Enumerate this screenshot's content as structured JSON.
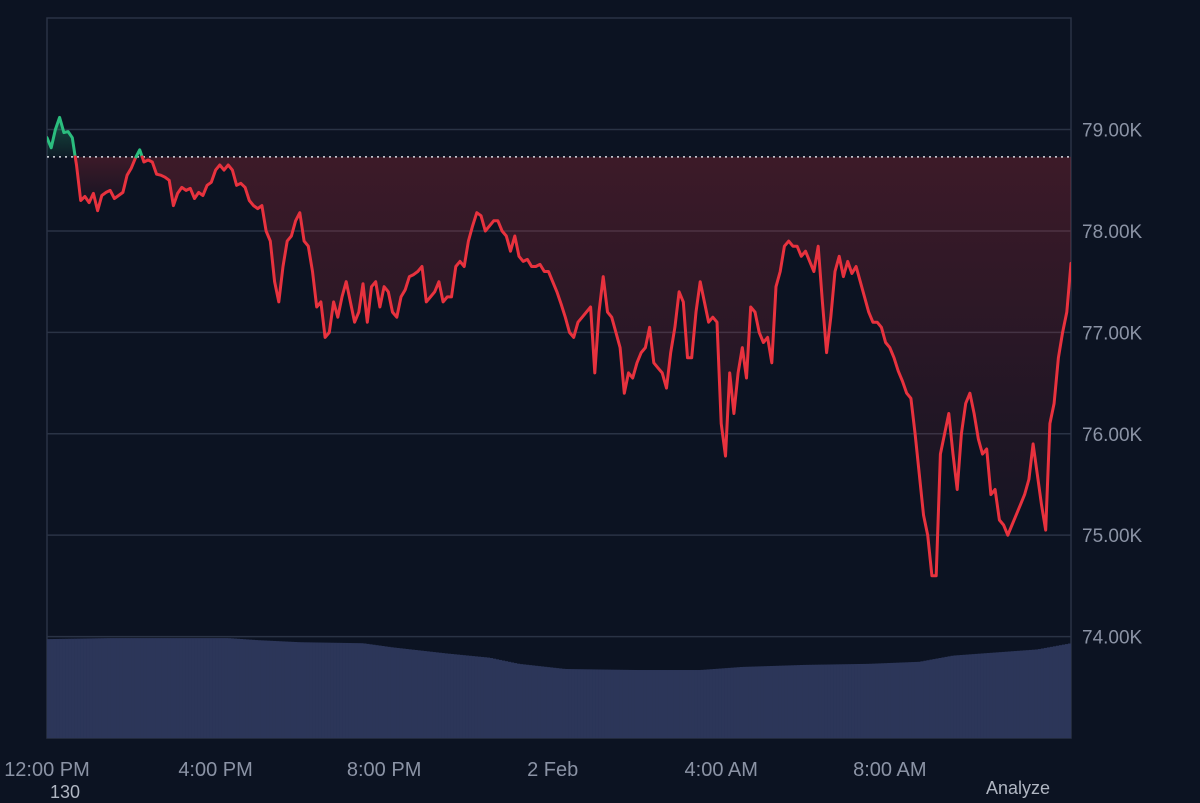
{
  "chart_data": {
    "type": "area",
    "baseline": 78.73,
    "y_unit_suffix": "K",
    "ylim": [
      73.0,
      80.1
    ],
    "yticks": [
      {
        "v": 79.0,
        "label": "79.00K"
      },
      {
        "v": 78.0,
        "label": "78.00K"
      },
      {
        "v": 77.0,
        "label": "77.00K"
      },
      {
        "v": 76.0,
        "label": "76.00K"
      },
      {
        "v": 75.0,
        "label": "75.00K"
      },
      {
        "v": 74.0,
        "label": "74.00K"
      }
    ],
    "xticks": [
      {
        "t": 0,
        "label": "12:00 PM"
      },
      {
        "t": 4,
        "label": "4:00 PM"
      },
      {
        "t": 8,
        "label": "8:00 PM"
      },
      {
        "t": 12,
        "label": "2 Feb"
      },
      {
        "t": 16,
        "label": "4:00 AM"
      },
      {
        "t": 20,
        "label": "8:00 AM"
      }
    ],
    "xlim": [
      0,
      24.3
    ],
    "grid": true,
    "colors": {
      "up": "#2bbd7e",
      "down": "#e8323e",
      "volume": "#2c3659",
      "grid": "#2a3345"
    },
    "price": [
      [
        0,
        78.92
      ],
      [
        0.1,
        78.82
      ],
      [
        0.2,
        79.0
      ],
      [
        0.3,
        79.12
      ],
      [
        0.4,
        78.97
      ],
      [
        0.5,
        78.98
      ],
      [
        0.6,
        78.92
      ],
      [
        0.7,
        78.65
      ],
      [
        0.8,
        78.3
      ],
      [
        0.9,
        78.34
      ],
      [
        1.0,
        78.28
      ],
      [
        1.1,
        78.37
      ],
      [
        1.2,
        78.2
      ],
      [
        1.3,
        78.35
      ],
      [
        1.4,
        78.38
      ],
      [
        1.5,
        78.4
      ],
      [
        1.6,
        78.32
      ],
      [
        1.7,
        78.35
      ],
      [
        1.8,
        78.38
      ],
      [
        1.9,
        78.55
      ],
      [
        2.0,
        78.62
      ],
      [
        2.1,
        78.72
      ],
      [
        2.2,
        78.8
      ],
      [
        2.3,
        78.68
      ],
      [
        2.4,
        78.7
      ],
      [
        2.5,
        78.68
      ],
      [
        2.6,
        78.56
      ],
      [
        2.7,
        78.55
      ],
      [
        2.8,
        78.53
      ],
      [
        2.9,
        78.5
      ],
      [
        3.0,
        78.25
      ],
      [
        3.1,
        78.37
      ],
      [
        3.2,
        78.43
      ],
      [
        3.3,
        78.4
      ],
      [
        3.4,
        78.42
      ],
      [
        3.5,
        78.32
      ],
      [
        3.6,
        78.38
      ],
      [
        3.7,
        78.35
      ],
      [
        3.8,
        78.45
      ],
      [
        3.9,
        78.48
      ],
      [
        4.0,
        78.6
      ],
      [
        4.1,
        78.65
      ],
      [
        4.2,
        78.6
      ],
      [
        4.3,
        78.65
      ],
      [
        4.4,
        78.6
      ],
      [
        4.5,
        78.45
      ],
      [
        4.6,
        78.47
      ],
      [
        4.7,
        78.43
      ],
      [
        4.8,
        78.3
      ],
      [
        4.9,
        78.25
      ],
      [
        5.0,
        78.22
      ],
      [
        5.1,
        78.25
      ],
      [
        5.2,
        78.0
      ],
      [
        5.3,
        77.9
      ],
      [
        5.4,
        77.5
      ],
      [
        5.5,
        77.3
      ],
      [
        5.6,
        77.65
      ],
      [
        5.7,
        77.9
      ],
      [
        5.8,
        77.95
      ],
      [
        5.9,
        78.1
      ],
      [
        6.0,
        78.18
      ],
      [
        6.1,
        77.9
      ],
      [
        6.2,
        77.85
      ],
      [
        6.3,
        77.6
      ],
      [
        6.4,
        77.25
      ],
      [
        6.5,
        77.3
      ],
      [
        6.6,
        76.95
      ],
      [
        6.7,
        77.0
      ],
      [
        6.8,
        77.3
      ],
      [
        6.9,
        77.15
      ],
      [
        7.0,
        77.35
      ],
      [
        7.1,
        77.5
      ],
      [
        7.2,
        77.3
      ],
      [
        7.3,
        77.1
      ],
      [
        7.4,
        77.2
      ],
      [
        7.5,
        77.48
      ],
      [
        7.6,
        77.1
      ],
      [
        7.7,
        77.45
      ],
      [
        7.8,
        77.5
      ],
      [
        7.9,
        77.25
      ],
      [
        8.0,
        77.45
      ],
      [
        8.1,
        77.4
      ],
      [
        8.2,
        77.2
      ],
      [
        8.3,
        77.15
      ],
      [
        8.4,
        77.35
      ],
      [
        8.5,
        77.42
      ],
      [
        8.6,
        77.55
      ],
      [
        8.7,
        77.57
      ],
      [
        8.8,
        77.6
      ],
      [
        8.9,
        77.65
      ],
      [
        9.0,
        77.3
      ],
      [
        9.1,
        77.35
      ],
      [
        9.2,
        77.4
      ],
      [
        9.3,
        77.5
      ],
      [
        9.4,
        77.3
      ],
      [
        9.5,
        77.35
      ],
      [
        9.6,
        77.35
      ],
      [
        9.7,
        77.65
      ],
      [
        9.8,
        77.7
      ],
      [
        9.9,
        77.65
      ],
      [
        10.0,
        77.9
      ],
      [
        10.1,
        78.05
      ],
      [
        10.2,
        78.18
      ],
      [
        10.3,
        78.15
      ],
      [
        10.4,
        78.0
      ],
      [
        10.5,
        78.05
      ],
      [
        10.6,
        78.1
      ],
      [
        10.7,
        78.1
      ],
      [
        10.8,
        78.0
      ],
      [
        10.9,
        77.95
      ],
      [
        11.0,
        77.8
      ],
      [
        11.1,
        77.95
      ],
      [
        11.2,
        77.75
      ],
      [
        11.3,
        77.7
      ],
      [
        11.4,
        77.72
      ],
      [
        11.5,
        77.65
      ],
      [
        11.6,
        77.65
      ],
      [
        11.7,
        77.67
      ],
      [
        11.8,
        77.6
      ],
      [
        11.9,
        77.6
      ],
      [
        12.0,
        77.5
      ],
      [
        12.1,
        77.4
      ],
      [
        12.2,
        77.28
      ],
      [
        12.3,
        77.15
      ],
      [
        12.4,
        77.0
      ],
      [
        12.5,
        76.95
      ],
      [
        12.6,
        77.1
      ],
      [
        12.7,
        77.15
      ],
      [
        12.8,
        77.2
      ],
      [
        12.9,
        77.25
      ],
      [
        13.0,
        76.6
      ],
      [
        13.1,
        77.2
      ],
      [
        13.2,
        77.55
      ],
      [
        13.3,
        77.2
      ],
      [
        13.4,
        77.15
      ],
      [
        13.5,
        77.0
      ],
      [
        13.6,
        76.85
      ],
      [
        13.7,
        76.4
      ],
      [
        13.8,
        76.6
      ],
      [
        13.9,
        76.55
      ],
      [
        14.0,
        76.7
      ],
      [
        14.1,
        76.8
      ],
      [
        14.2,
        76.85
      ],
      [
        14.3,
        77.05
      ],
      [
        14.4,
        76.7
      ],
      [
        14.5,
        76.65
      ],
      [
        14.6,
        76.6
      ],
      [
        14.7,
        76.45
      ],
      [
        14.8,
        76.8
      ],
      [
        14.9,
        77.05
      ],
      [
        15.0,
        77.4
      ],
      [
        15.1,
        77.3
      ],
      [
        15.2,
        76.75
      ],
      [
        15.3,
        76.75
      ],
      [
        15.4,
        77.2
      ],
      [
        15.5,
        77.5
      ],
      [
        15.6,
        77.3
      ],
      [
        15.7,
        77.1
      ],
      [
        15.8,
        77.15
      ],
      [
        15.9,
        77.1
      ],
      [
        16.0,
        76.1
      ],
      [
        16.1,
        75.78
      ],
      [
        16.2,
        76.6
      ],
      [
        16.3,
        76.2
      ],
      [
        16.4,
        76.6
      ],
      [
        16.5,
        76.85
      ],
      [
        16.6,
        76.55
      ],
      [
        16.7,
        77.25
      ],
      [
        16.8,
        77.2
      ],
      [
        16.9,
        77.0
      ],
      [
        17.0,
        76.9
      ],
      [
        17.1,
        76.95
      ],
      [
        17.2,
        76.7
      ],
      [
        17.3,
        77.45
      ],
      [
        17.4,
        77.6
      ],
      [
        17.5,
        77.85
      ],
      [
        17.6,
        77.9
      ],
      [
        17.7,
        77.85
      ],
      [
        17.8,
        77.85
      ],
      [
        17.9,
        77.75
      ],
      [
        18.0,
        77.8
      ],
      [
        18.1,
        77.7
      ],
      [
        18.2,
        77.6
      ],
      [
        18.3,
        77.85
      ],
      [
        18.4,
        77.3
      ],
      [
        18.5,
        76.8
      ],
      [
        18.6,
        77.15
      ],
      [
        18.7,
        77.6
      ],
      [
        18.8,
        77.75
      ],
      [
        18.9,
        77.55
      ],
      [
        19.0,
        77.7
      ],
      [
        19.1,
        77.58
      ],
      [
        19.2,
        77.65
      ],
      [
        19.3,
        77.5
      ],
      [
        19.4,
        77.35
      ],
      [
        19.5,
        77.2
      ],
      [
        19.6,
        77.1
      ],
      [
        19.7,
        77.1
      ],
      [
        19.8,
        77.05
      ],
      [
        19.9,
        76.9
      ],
      [
        20.0,
        76.85
      ],
      [
        20.1,
        76.75
      ],
      [
        20.2,
        76.62
      ],
      [
        20.3,
        76.52
      ],
      [
        20.4,
        76.4
      ],
      [
        20.5,
        76.35
      ],
      [
        20.6,
        76.0
      ],
      [
        20.7,
        75.6
      ],
      [
        20.8,
        75.2
      ],
      [
        20.9,
        75.0
      ],
      [
        21.0,
        74.6
      ],
      [
        21.1,
        74.6
      ],
      [
        21.2,
        75.8
      ],
      [
        21.3,
        76.0
      ],
      [
        21.4,
        76.2
      ],
      [
        21.5,
        75.8
      ],
      [
        21.6,
        75.45
      ],
      [
        21.7,
        76.0
      ],
      [
        21.8,
        76.3
      ],
      [
        21.9,
        76.4
      ],
      [
        22.0,
        76.2
      ],
      [
        22.1,
        75.95
      ],
      [
        22.2,
        75.8
      ],
      [
        22.3,
        75.85
      ],
      [
        22.4,
        75.4
      ],
      [
        22.5,
        75.45
      ],
      [
        22.6,
        75.15
      ],
      [
        22.7,
        75.1
      ],
      [
        22.8,
        75.0
      ],
      [
        22.9,
        75.1
      ],
      [
        23.0,
        75.2
      ],
      [
        23.1,
        75.3
      ],
      [
        23.2,
        75.4
      ],
      [
        23.3,
        75.55
      ],
      [
        23.4,
        75.9
      ],
      [
        23.5,
        75.6
      ],
      [
        23.6,
        75.3
      ],
      [
        23.7,
        75.05
      ],
      [
        23.8,
        76.1
      ],
      [
        23.9,
        76.3
      ],
      [
        24.0,
        76.75
      ],
      [
        24.1,
        77.0
      ],
      [
        24.2,
        77.2
      ],
      [
        24.3,
        77.68
      ]
    ],
    "volume_profile": [
      [
        0,
        0.96
      ],
      [
        1.5,
        0.97
      ],
      [
        3,
        0.97
      ],
      [
        4.3,
        0.97
      ],
      [
        5,
        0.95
      ],
      [
        6,
        0.93
      ],
      [
        7.5,
        0.92
      ],
      [
        8.2,
        0.88
      ],
      [
        9.5,
        0.82
      ],
      [
        10.5,
        0.78
      ],
      [
        11.2,
        0.72
      ],
      [
        12.3,
        0.67
      ],
      [
        14,
        0.66
      ],
      [
        15.5,
        0.66
      ],
      [
        16.5,
        0.69
      ],
      [
        18,
        0.71
      ],
      [
        19.5,
        0.72
      ],
      [
        20.7,
        0.74
      ],
      [
        21.5,
        0.8
      ],
      [
        22.5,
        0.83
      ],
      [
        23.5,
        0.86
      ],
      [
        24.3,
        0.92
      ]
    ]
  },
  "footer": {
    "left_value": "130",
    "right_label": "Analyze"
  }
}
